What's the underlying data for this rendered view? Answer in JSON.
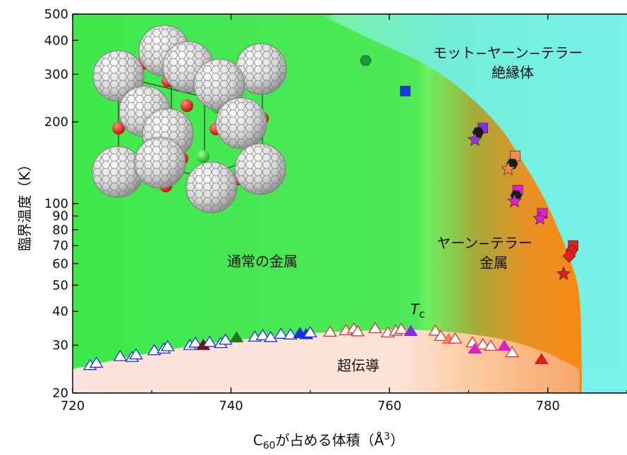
{
  "chart_data": {
    "type": "scatter",
    "x_axis": {
      "label_prefix": "C",
      "label_sub": "60",
      "label_mid": "が占める体積（Å",
      "label_sup": "3",
      "label_suffix": "）",
      "range": [
        720,
        790
      ],
      "ticks": [
        720,
        740,
        760,
        780
      ],
      "tick_labels": [
        "720",
        "740",
        "760",
        "780"
      ]
    },
    "y_axis": {
      "label": "臨界温度（K）",
      "scale": "log",
      "range": [
        20,
        500
      ],
      "major_ticks": [
        20,
        30,
        40,
        50,
        60,
        70,
        80,
        90,
        100,
        200,
        300,
        400,
        500
      ],
      "tick_labels": [
        "20",
        "30",
        "40",
        "50",
        "60",
        "70",
        "80",
        "90",
        "100",
        "200",
        "300",
        "400",
        "500"
      ]
    },
    "regions": {
      "normal_metal": "通常の金属",
      "jt_metal_line1": "ヤーン−テラー",
      "jt_metal_line2": "金属",
      "mott_line1": "モット−ヤーン−テラー",
      "mott_line2": "絶縁体",
      "superconductor": "超伝導",
      "tc_label": "T",
      "tc_sub": "c"
    },
    "colors": {
      "normal_metal": "#3ee84c",
      "jt_metal": "#f98a10",
      "mott_insulator": "#74f0e8",
      "superconductor": "#fde3dd"
    },
    "tc_boundary": [
      [
        720,
        24.5
      ],
      [
        730,
        28.2
      ],
      [
        740,
        31.2
      ],
      [
        750,
        33.2
      ],
      [
        760,
        34.2
      ],
      [
        765,
        34.0
      ],
      [
        770,
        33.0
      ],
      [
        775,
        31.2
      ],
      [
        780,
        28.0
      ],
      [
        784,
        24.5
      ]
    ],
    "phase_boundary": [
      [
        751,
        500
      ],
      [
        758,
        400
      ],
      [
        765,
        320
      ],
      [
        770,
        250
      ],
      [
        774,
        190
      ],
      [
        777,
        140
      ],
      [
        779.5,
        105
      ],
      [
        781.5,
        78
      ],
      [
        783,
        60
      ],
      [
        784,
        45
      ],
      [
        784.3,
        24.5
      ]
    ],
    "tc_points": [
      {
        "x": 722.2,
        "y": 25.3,
        "filled": false,
        "color": "#1a2fe0"
      },
      {
        "x": 723.0,
        "y": 25.8,
        "filled": false,
        "color": "#1a2fe0"
      },
      {
        "x": 726.0,
        "y": 27.3,
        "filled": false,
        "color": "#1a2fe0"
      },
      {
        "x": 727.5,
        "y": 27.1,
        "filled": false,
        "color": "#1a2fe0"
      },
      {
        "x": 728.0,
        "y": 27.7,
        "filled": false,
        "color": "#1a2fe0"
      },
      {
        "x": 730.3,
        "y": 28.7,
        "filled": false,
        "color": "#1a2fe0"
      },
      {
        "x": 731.5,
        "y": 29.1,
        "filled": false,
        "color": "#1a2fe0"
      },
      {
        "x": 732.0,
        "y": 29.7,
        "filled": false,
        "color": "#1a2fe0"
      },
      {
        "x": 734.8,
        "y": 30.0,
        "filled": false,
        "color": "#1a2fe0"
      },
      {
        "x": 735.5,
        "y": 30.6,
        "filled": false,
        "color": "#1a2fe0"
      },
      {
        "x": 736.5,
        "y": 30.0,
        "filled": true,
        "color": "#7a0d0d"
      },
      {
        "x": 737.3,
        "y": 30.8,
        "filled": false,
        "color": "#1a2fe0"
      },
      {
        "x": 738.7,
        "y": 30.5,
        "filled": false,
        "color": "#1a2fe0"
      },
      {
        "x": 739.3,
        "y": 31.4,
        "filled": false,
        "color": "#1a2fe0"
      },
      {
        "x": 740.7,
        "y": 32.0,
        "filled": true,
        "color": "#1c7a1c"
      },
      {
        "x": 743.0,
        "y": 32.2,
        "filled": false,
        "color": "#1a2fe0"
      },
      {
        "x": 744.0,
        "y": 32.6,
        "filled": false,
        "color": "#1a2fe0"
      },
      {
        "x": 745.0,
        "y": 32.1,
        "filled": false,
        "color": "#1a2fe0"
      },
      {
        "x": 746.3,
        "y": 33.0,
        "filled": false,
        "color": "#1a2fe0"
      },
      {
        "x": 747.5,
        "y": 32.8,
        "filled": false,
        "color": "#1a2fe0"
      },
      {
        "x": 748.7,
        "y": 33.2,
        "filled": true,
        "color": "#1a2fe0"
      },
      {
        "x": 749.5,
        "y": 32.9,
        "filled": true,
        "color": "#1a2fe0"
      },
      {
        "x": 750.0,
        "y": 33.4,
        "filled": false,
        "color": "#1a2fe0"
      },
      {
        "x": 752.5,
        "y": 33.6,
        "filled": false,
        "color": "#e63030"
      },
      {
        "x": 754.5,
        "y": 34.0,
        "filled": false,
        "color": "#e63030"
      },
      {
        "x": 755.5,
        "y": 34.5,
        "filled": false,
        "color": "#e63030"
      },
      {
        "x": 756.0,
        "y": 33.7,
        "filled": false,
        "color": "#e63030"
      },
      {
        "x": 758.2,
        "y": 34.6,
        "filled": false,
        "color": "#e63030"
      },
      {
        "x": 759.8,
        "y": 33.4,
        "filled": false,
        "color": "#e63030"
      },
      {
        "x": 760.8,
        "y": 33.9,
        "filled": false,
        "color": "#e63030"
      },
      {
        "x": 761.5,
        "y": 34.4,
        "filled": false,
        "color": "#e63030"
      },
      {
        "x": 762.7,
        "y": 33.8,
        "filled": true,
        "color": "#8a2be2"
      },
      {
        "x": 765.8,
        "y": 33.9,
        "filled": false,
        "color": "#e63030"
      },
      {
        "x": 766.5,
        "y": 32.4,
        "filled": false,
        "color": "#e63030"
      },
      {
        "x": 767.5,
        "y": 31.6,
        "filled": true,
        "color": "#f47a5a"
      },
      {
        "x": 768.3,
        "y": 31.7,
        "filled": false,
        "color": "#e63030"
      },
      {
        "x": 770.5,
        "y": 30.7,
        "filled": false,
        "color": "#e63030"
      },
      {
        "x": 770.8,
        "y": 29.1,
        "filled": true,
        "color": "#e020c8"
      },
      {
        "x": 771.8,
        "y": 30.2,
        "filled": false,
        "color": "#e63030"
      },
      {
        "x": 772.8,
        "y": 29.8,
        "filled": false,
        "color": "#e63030"
      },
      {
        "x": 774.5,
        "y": 29.8,
        "filled": true,
        "color": "#e020c8"
      },
      {
        "x": 775.5,
        "y": 28.2,
        "filled": false,
        "color": "#e63030"
      },
      {
        "x": 779.2,
        "y": 26.6,
        "filled": true,
        "color": "#e02020"
      }
    ],
    "transition_points": [
      {
        "x": 757.0,
        "y": 337,
        "shape": "hexagon",
        "color": "#1c9a3a"
      },
      {
        "x": 762.0,
        "y": 260,
        "shape": "square",
        "color": "#1a3ae0"
      },
      {
        "x": 771.8,
        "y": 190,
        "shape": "square",
        "color": "#8a2be2"
      },
      {
        "x": 771.2,
        "y": 183,
        "shape": "hexagon",
        "color": "#1a1a1a"
      },
      {
        "x": 770.8,
        "y": 172,
        "shape": "star",
        "color": "#9a32e0"
      },
      {
        "x": 775.9,
        "y": 150,
        "shape": "square",
        "color": "#f4894f"
      },
      {
        "x": 775.5,
        "y": 140,
        "shape": "hexagon",
        "color": "#1a1a1a"
      },
      {
        "x": 775.0,
        "y": 134,
        "shape": "star",
        "color": "#f4894f"
      },
      {
        "x": 776.2,
        "y": 112,
        "shape": "square",
        "color": "#e020c8"
      },
      {
        "x": 776.0,
        "y": 107,
        "shape": "hexagon",
        "color": "#1a1a1a"
      },
      {
        "x": 775.8,
        "y": 102,
        "shape": "star",
        "color": "#e020c8"
      },
      {
        "x": 779.3,
        "y": 92,
        "shape": "square",
        "color": "#e020c8"
      },
      {
        "x": 779.0,
        "y": 88,
        "shape": "star",
        "color": "#e020c8"
      },
      {
        "x": 783.2,
        "y": 70,
        "shape": "square",
        "color": "#e02020"
      },
      {
        "x": 783.0,
        "y": 67,
        "shape": "hexagon",
        "color": "#e02020"
      },
      {
        "x": 782.7,
        "y": 64,
        "shape": "diamond",
        "color": "#e02020"
      },
      {
        "x": 782.0,
        "y": 55,
        "shape": "star",
        "color": "#e02020"
      }
    ]
  }
}
